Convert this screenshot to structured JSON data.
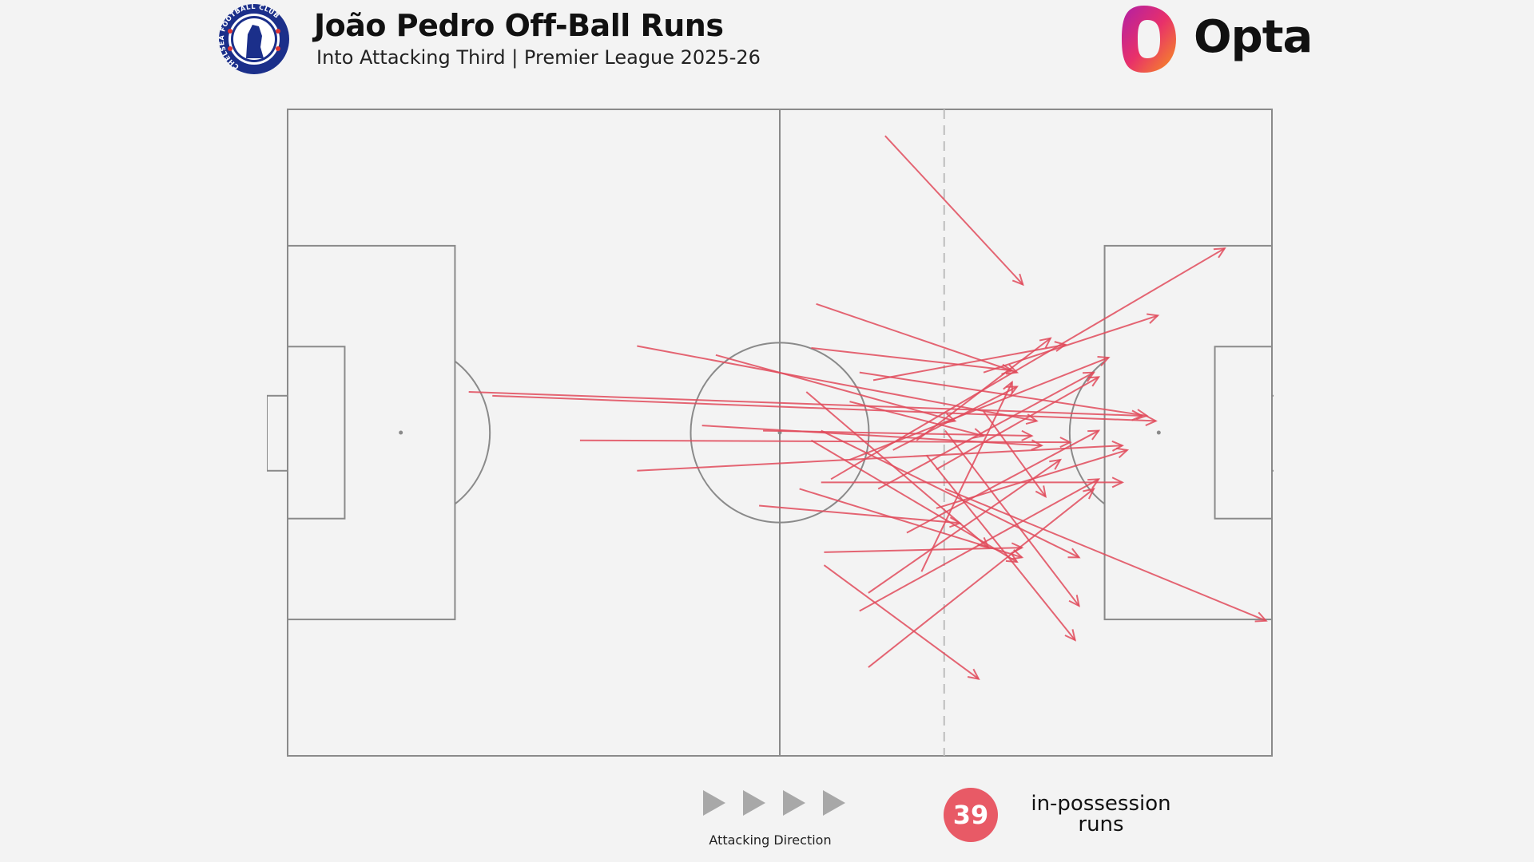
{
  "header": {
    "title": "João Pedro Off-Ball Runs",
    "subtitle": "Into Attacking Third | Premier League 2025-26",
    "club_crest": "Chelsea crest",
    "crest_lettering": "CHELSEA FOOTBALL CLUB",
    "brand": "Opta"
  },
  "legend": {
    "direction_label": "Attacking Direction",
    "count": "39",
    "count_label_line1": "in-possession",
    "count_label_line2": "runs"
  },
  "colors": {
    "run": "#e04a5a",
    "pitch_lines": "#8a8a8a",
    "badge": "#e85a66",
    "background": "#f3f3f3"
  },
  "chart_data": {
    "type": "pitch-arrows",
    "title": "João Pedro Off-Ball Runs",
    "subtitle": "Into Attacking Third | Premier League 2025-26",
    "xlim": [
      0,
      100
    ],
    "ylim": [
      0,
      100
    ],
    "attacking_direction": "left-to-right",
    "attacking_third_line_x": 66.7,
    "runs": [
      {
        "x": 60.7,
        "y": 4.1,
        "end_x": 74.7,
        "end_y": 27.1
      },
      {
        "x": 53.7,
        "y": 30.1,
        "end_x": 74.1,
        "end_y": 40.7
      },
      {
        "x": 35.5,
        "y": 36.6,
        "end_x": 76.1,
        "end_y": 48.2
      },
      {
        "x": 43.5,
        "y": 38.0,
        "end_x": 67.8,
        "end_y": 48.2
      },
      {
        "x": 18.4,
        "y": 43.7,
        "end_x": 86.8,
        "end_y": 47.4
      },
      {
        "x": 20.8,
        "y": 44.3,
        "end_x": 88.2,
        "end_y": 48.2
      },
      {
        "x": 29.7,
        "y": 51.2,
        "end_x": 79.5,
        "end_y": 51.5
      },
      {
        "x": 35.5,
        "y": 55.9,
        "end_x": 84.8,
        "end_y": 52.0
      },
      {
        "x": 42.1,
        "y": 48.9,
        "end_x": 76.6,
        "end_y": 52.0
      },
      {
        "x": 47.9,
        "y": 61.3,
        "end_x": 68.3,
        "end_y": 64.0
      },
      {
        "x": 52.7,
        "y": 43.7,
        "end_x": 71.2,
        "end_y": 67.8
      },
      {
        "x": 53.2,
        "y": 51.2,
        "end_x": 74.1,
        "end_y": 70.0
      },
      {
        "x": 52.0,
        "y": 58.7,
        "end_x": 74.6,
        "end_y": 69.3
      },
      {
        "x": 54.5,
        "y": 68.5,
        "end_x": 74.6,
        "end_y": 67.8
      },
      {
        "x": 54.5,
        "y": 70.5,
        "end_x": 70.2,
        "end_y": 88.1
      },
      {
        "x": 59.0,
        "y": 86.3,
        "end_x": 81.9,
        "end_y": 58.7
      },
      {
        "x": 58.1,
        "y": 77.6,
        "end_x": 82.4,
        "end_y": 57.2
      },
      {
        "x": 59.0,
        "y": 74.8,
        "end_x": 78.5,
        "end_y": 54.2
      },
      {
        "x": 59.5,
        "y": 41.9,
        "end_x": 79.0,
        "end_y": 36.4
      },
      {
        "x": 55.2,
        "y": 57.2,
        "end_x": 95.2,
        "end_y": 21.5
      },
      {
        "x": 70.7,
        "y": 40.7,
        "end_x": 88.4,
        "end_y": 31.9
      },
      {
        "x": 54.2,
        "y": 57.7,
        "end_x": 84.8,
        "end_y": 57.7
      },
      {
        "x": 64.4,
        "y": 71.5,
        "end_x": 73.6,
        "end_y": 42.2
      },
      {
        "x": 66.8,
        "y": 49.7,
        "end_x": 80.4,
        "end_y": 76.8
      },
      {
        "x": 64.9,
        "y": 53.5,
        "end_x": 80.0,
        "end_y": 82.1
      },
      {
        "x": 57.1,
        "y": 54.2,
        "end_x": 83.4,
        "end_y": 38.4
      },
      {
        "x": 60.0,
        "y": 58.7,
        "end_x": 81.9,
        "end_y": 40.7
      },
      {
        "x": 53.2,
        "y": 36.9,
        "end_x": 73.6,
        "end_y": 40.4
      },
      {
        "x": 65.9,
        "y": 61.7,
        "end_x": 85.3,
        "end_y": 52.7
      },
      {
        "x": 62.9,
        "y": 65.5,
        "end_x": 82.4,
        "end_y": 49.7
      },
      {
        "x": 70.7,
        "y": 46.7,
        "end_x": 77.0,
        "end_y": 59.9
      },
      {
        "x": 66.8,
        "y": 58.7,
        "end_x": 99.4,
        "end_y": 79.1
      },
      {
        "x": 54.2,
        "y": 49.7,
        "end_x": 80.4,
        "end_y": 69.3
      },
      {
        "x": 61.5,
        "y": 52.7,
        "end_x": 74.1,
        "end_y": 42.9
      },
      {
        "x": 58.1,
        "y": 40.7,
        "end_x": 87.3,
        "end_y": 47.4
      },
      {
        "x": 63.9,
        "y": 51.2,
        "end_x": 77.5,
        "end_y": 35.4
      },
      {
        "x": 48.3,
        "y": 49.7,
        "end_x": 75.6,
        "end_y": 50.5
      },
      {
        "x": 65.9,
        "y": 55.7,
        "end_x": 82.4,
        "end_y": 41.4
      },
      {
        "x": 57.1,
        "y": 45.2,
        "end_x": 70.7,
        "end_y": 50.5
      }
    ]
  }
}
